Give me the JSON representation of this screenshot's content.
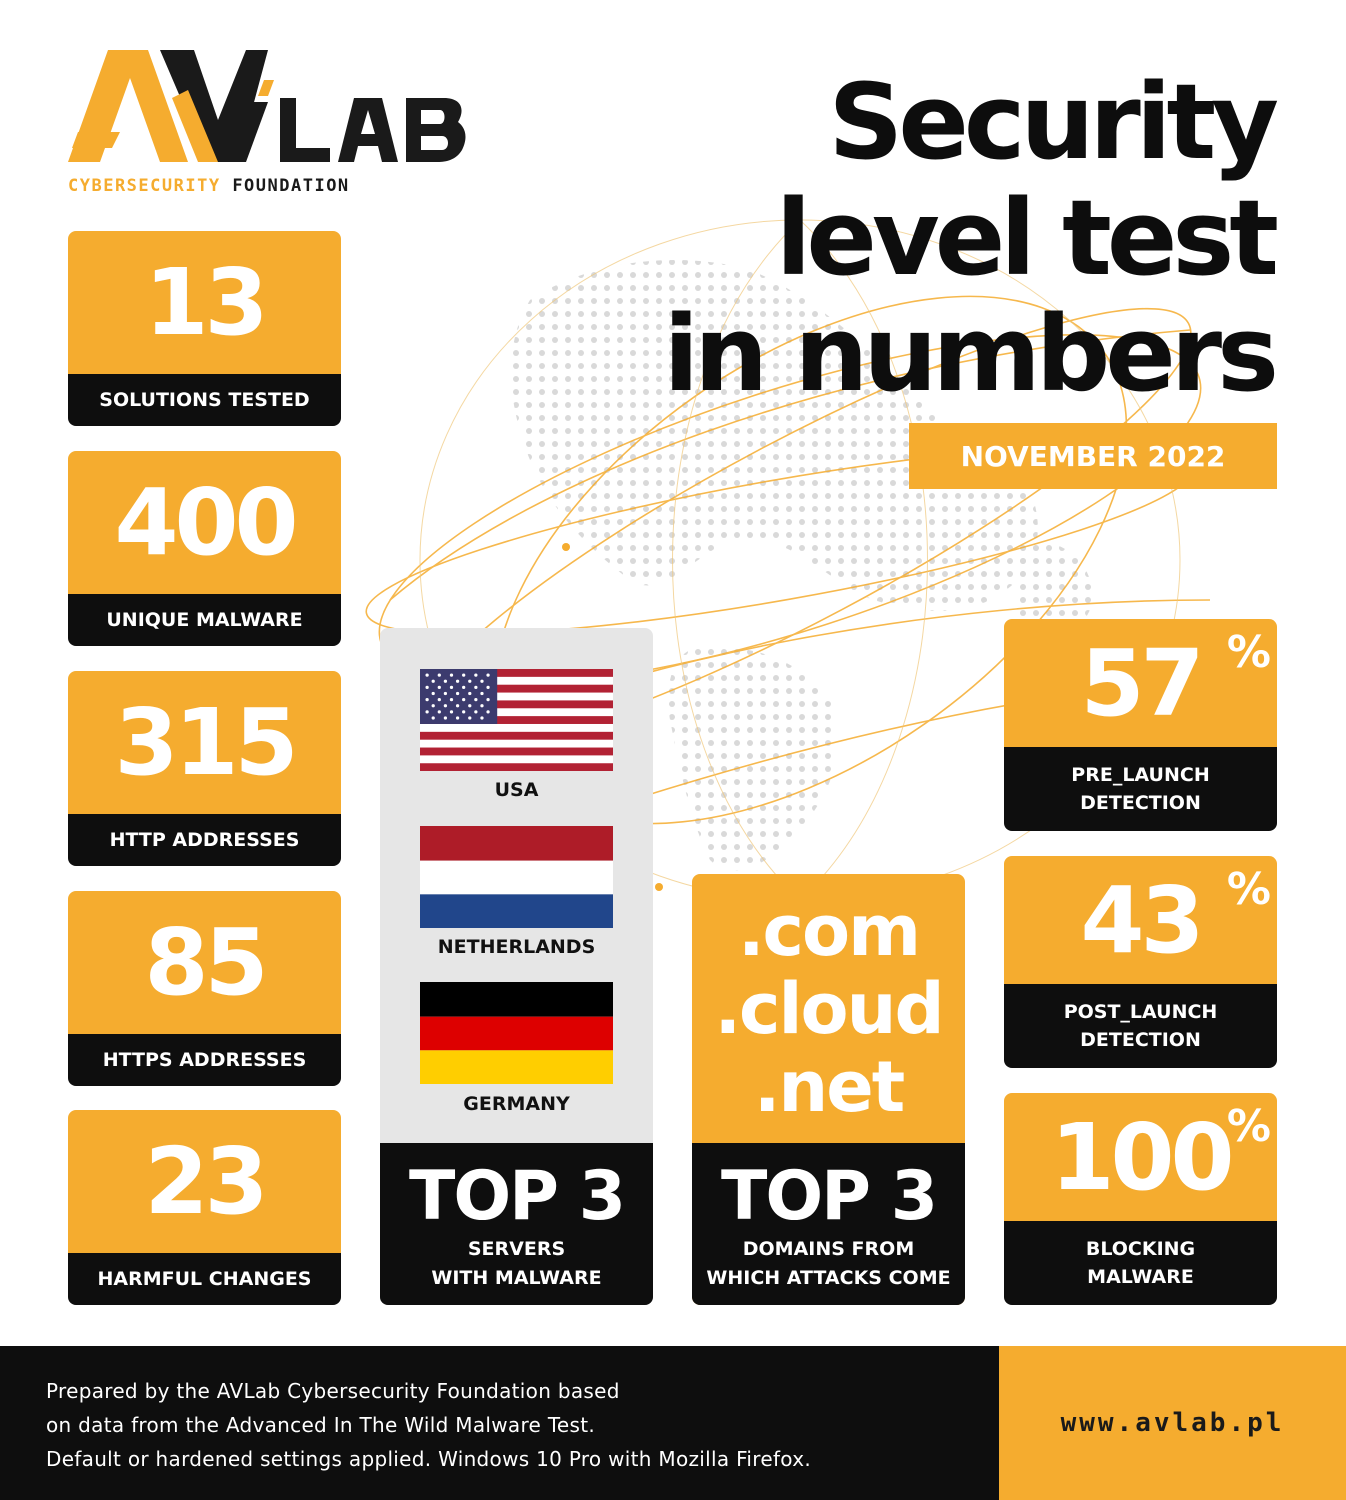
{
  "logo": {
    "brand": "AVLAB",
    "tagline_primary": "CYBERSECURITY",
    "tagline_secondary": "FOUNDATION",
    "accent": "#f5ac2f"
  },
  "title": {
    "line1": "Security",
    "line2": "level test",
    "line3": "in numbers"
  },
  "date": "NOVEMBER 2022",
  "left_stats": [
    {
      "value": "13",
      "label": "SOLUTIONS TESTED"
    },
    {
      "value": "400",
      "label": "UNIQUE MALWARE"
    },
    {
      "value": "315",
      "label": "HTTP ADDRESSES"
    },
    {
      "value": "85",
      "label": "HTTPS ADDRESSES"
    },
    {
      "value": "23",
      "label": "HARMFUL CHANGES"
    }
  ],
  "servers": {
    "countries": [
      {
        "name": "USA",
        "flag": "usa-flag"
      },
      {
        "name": "NETHERLANDS",
        "flag": "netherlands-flag"
      },
      {
        "name": "GERMANY",
        "flag": "germany-flag"
      }
    ],
    "heading": "TOP 3",
    "label_line1": "SERVERS",
    "label_line2": "WITH MALWARE"
  },
  "domains": {
    "list": [
      ".com",
      ".cloud",
      ".net"
    ],
    "heading": "TOP 3",
    "label_line1": "DOMAINS FROM",
    "label_line2": "WHICH ATTACKS COME"
  },
  "right_stats": [
    {
      "value": "57",
      "unit": "%",
      "label_line1": "PRE_LAUNCH",
      "label_line2": "DETECTION"
    },
    {
      "value": "43",
      "unit": "%",
      "label_line1": "POST_LAUNCH",
      "label_line2": "DETECTION"
    },
    {
      "value": "100",
      "unit": "%",
      "label_line1": "BLOCKING",
      "label_line2": "MALWARE"
    }
  ],
  "footer": {
    "line1": "Prepared by the AVLab Cybersecurity Foundation based",
    "line2": "on data from the Advanced In The Wild Malware Test.",
    "line3": "Default or hardened settings applied. Windows 10 Pro with Mozilla Firefox.",
    "url": "www.avlab.pl"
  },
  "colors": {
    "orange": "#f5ac2f",
    "black": "#0e0e0e",
    "light_gray": "#e6e6e6"
  }
}
